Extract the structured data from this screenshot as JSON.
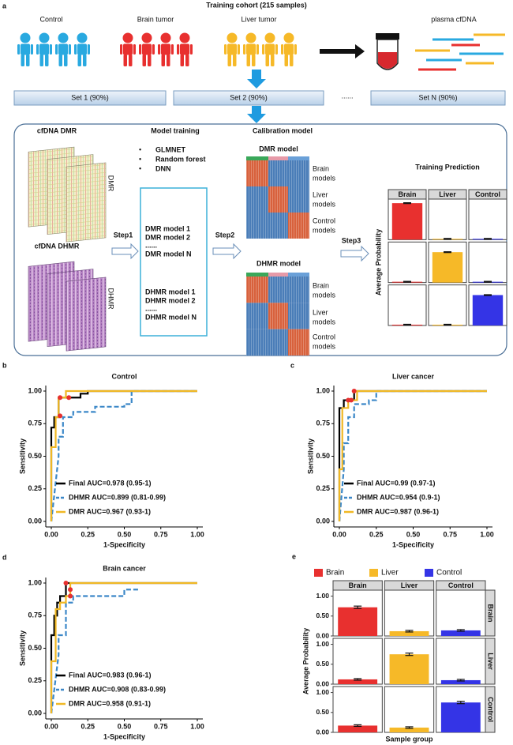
{
  "panel_a": {
    "label": "a",
    "title": "Training cohort (215 samples)",
    "groups": [
      "Control",
      "Brain tumor",
      "Liver tumor"
    ],
    "sample": "plasma cfDNA",
    "sets": [
      "Set 1 (90%)",
      "Set 2 (90%)",
      "......",
      "Set N (90%)"
    ],
    "features": {
      "dmr": "cfDNA DMR",
      "dmr_tag": "DMR",
      "dhmr": "cfDNA DHMR",
      "dhmr_tag": "DHMR"
    },
    "training": {
      "title": "Model training",
      "methods": [
        "GLMNET",
        "Random forest",
        "DNN"
      ],
      "dmr_models": [
        "DMR model 1",
        "DMR model 2",
        "......",
        "DMR model N"
      ],
      "dhmr_models": [
        "DHMR model 1",
        "DHMR model 2",
        "......",
        "DHMR model N"
      ]
    },
    "calibration": {
      "title": "Calibration model",
      "dmr_title": "DMR model",
      "dhmr_title": "DHMR model",
      "rows": [
        [
          "Brain",
          "models"
        ],
        [
          "Liver",
          "models"
        ],
        [
          "Control",
          "models"
        ]
      ]
    },
    "steps": [
      "Step1",
      "Step2",
      "Step3"
    ]
  },
  "chart_data": [
    {
      "type": "facet_bar",
      "title": "Training Prediction",
      "ylabel": "Average Probability",
      "categories": [
        "Brain",
        "Liver",
        "Control"
      ],
      "series": [
        {
          "name": "Brain",
          "color": "#e8302f"
        },
        {
          "name": "Liver",
          "color": "#f6b928"
        },
        {
          "name": "Control",
          "color": "#3434e6"
        }
      ],
      "ylim": [
        0,
        1
      ],
      "panels": [
        {
          "values": [
            0.9,
            0.02,
            0.02
          ],
          "errors": [
            0.01,
            0.01,
            0.01
          ]
        },
        {
          "values": [
            0.02,
            0.75,
            0.02
          ],
          "errors": [
            0.01,
            0.01,
            0.01
          ]
        },
        {
          "values": [
            0.02,
            0.02,
            0.75
          ],
          "errors": [
            0.01,
            0.01,
            0.01
          ]
        }
      ]
    },
    {
      "type": "roc",
      "panel": "b",
      "title": "Control",
      "xlabel": "1-Specificity",
      "ylabel": "Sensitivity",
      "legend": "bottom-left",
      "xlim": [
        0,
        1
      ],
      "ylim": [
        0,
        1
      ],
      "xticks": [
        {
          "value": 0,
          "label": "0.00"
        },
        {
          "value": 0.25,
          "label": "0.25"
        },
        {
          "value": 0.5,
          "label": "0.50"
        },
        {
          "value": 0.75,
          "label": "0.75"
        },
        {
          "value": 1,
          "label": "1.00"
        }
      ],
      "yticks": [
        {
          "value": 0,
          "label": "0.00"
        },
        {
          "value": 0.25,
          "label": "0.25"
        },
        {
          "value": 0.5,
          "label": "0.50"
        },
        {
          "value": 0.75,
          "label": "0.75"
        },
        {
          "value": 1,
          "label": "1.00"
        }
      ],
      "series": [
        {
          "name": "Final AUC=0.978 (0.95-1)",
          "color": "#000000",
          "dash": false,
          "x": [
            0,
            0,
            0.02,
            0.02,
            0.05,
            0.05,
            0.2,
            0.2,
            0.25,
            0.25,
            1
          ],
          "values": [
            0,
            0.72,
            0.72,
            0.8,
            0.8,
            0.95,
            0.95,
            0.98,
            0.98,
            1,
            1
          ]
        },
        {
          "name": "DHMR AUC=0.899 (0.81-0.99)",
          "color": "#3c88c8",
          "dash": true,
          "x": [
            0,
            0.05,
            0.05,
            0.08,
            0.08,
            0.15,
            0.15,
            0.3,
            0.3,
            0.5,
            0.5,
            0.55,
            0.55,
            1
          ],
          "values": [
            0,
            0.5,
            0.65,
            0.65,
            0.8,
            0.8,
            0.84,
            0.84,
            0.88,
            0.88,
            0.9,
            0.9,
            1,
            1
          ]
        },
        {
          "name": "DMR AUC=0.967 (0.93-1)",
          "color": "#f0b825",
          "dash": false,
          "x": [
            0,
            0,
            0.03,
            0.03,
            0.05,
            0.05,
            0.1,
            0.1,
            1
          ],
          "values": [
            0,
            0.57,
            0.57,
            0.8,
            0.8,
            0.95,
            0.95,
            1,
            1
          ]
        }
      ],
      "points": {
        "color": "#e8302f",
        "x": [
          0.06,
          0.12,
          0.06
        ],
        "values": [
          0.95,
          0.95,
          0.81
        ]
      }
    },
    {
      "type": "roc",
      "panel": "c",
      "title": "Liver cancer",
      "xlabel": "1-Specificity",
      "ylabel": "Sensitivity",
      "legend": "bottom-left",
      "xlim": [
        0,
        1
      ],
      "ylim": [
        0,
        1
      ],
      "xticks": [
        {
          "value": 0,
          "label": "0.00"
        },
        {
          "value": 0.25,
          "label": "0.25"
        },
        {
          "value": 0.5,
          "label": "0.50"
        },
        {
          "value": 0.75,
          "label": "0.75"
        },
        {
          "value": 1,
          "label": "1.00"
        }
      ],
      "yticks": [
        {
          "value": 0,
          "label": "0.00"
        },
        {
          "value": 0.25,
          "label": "0.25"
        },
        {
          "value": 0.5,
          "label": "0.50"
        },
        {
          "value": 0.75,
          "label": "0.75"
        },
        {
          "value": 1,
          "label": "1.00"
        }
      ],
      "series": [
        {
          "name": "Final AUC=0.99 (0.97-1)",
          "color": "#000000",
          "dash": false,
          "x": [
            0,
            0,
            0.03,
            0.03,
            0.1,
            0.1,
            1
          ],
          "values": [
            0,
            0.87,
            0.87,
            0.93,
            0.93,
            1,
            1
          ]
        },
        {
          "name": "DHMR AUC=0.954 (0.9-1)",
          "color": "#3c88c8",
          "dash": true,
          "x": [
            0,
            0.03,
            0.03,
            0.06,
            0.06,
            0.1,
            0.1,
            0.2,
            0.2,
            0.25,
            0.25,
            1
          ],
          "values": [
            0,
            0.4,
            0.6,
            0.6,
            0.8,
            0.8,
            0.9,
            0.9,
            0.93,
            0.93,
            1,
            1
          ]
        },
        {
          "name": "DMR AUC=0.987 (0.96-1)",
          "color": "#f0b825",
          "dash": false,
          "x": [
            0,
            0,
            0.02,
            0.02,
            0.06,
            0.06,
            0.12,
            0.12,
            1
          ],
          "values": [
            0,
            0.4,
            0.4,
            0.87,
            0.87,
            0.93,
            0.93,
            1,
            1
          ]
        }
      ],
      "points": {
        "color": "#e8302f",
        "x": [
          0.06,
          0.1,
          0.08
        ],
        "values": [
          0.93,
          1,
          0.93
        ]
      }
    },
    {
      "type": "roc",
      "panel": "d",
      "title": "Brain cancer",
      "xlabel": "1-Specificity",
      "ylabel": "Sensitivity",
      "legend": "bottom-left",
      "xlim": [
        0,
        1
      ],
      "ylim": [
        0,
        1
      ],
      "xticks": [
        {
          "value": 0,
          "label": "0.00"
        },
        {
          "value": 0.25,
          "label": "0.25"
        },
        {
          "value": 0.5,
          "label": "0.50"
        },
        {
          "value": 0.75,
          "label": "0.75"
        },
        {
          "value": 1,
          "label": "1.00"
        }
      ],
      "yticks": [
        {
          "value": 0,
          "label": "0.00"
        },
        {
          "value": 0.25,
          "label": "0.25"
        },
        {
          "value": 0.5,
          "label": "0.50"
        },
        {
          "value": 0.75,
          "label": "0.75"
        },
        {
          "value": 1,
          "label": "1.00"
        }
      ],
      "series": [
        {
          "name": "Final AUC=0.983 (0.96-1)",
          "color": "#000000",
          "dash": false,
          "x": [
            0,
            0,
            0.02,
            0.02,
            0.04,
            0.04,
            0.06,
            0.06,
            0.1,
            0.1,
            1
          ],
          "values": [
            0,
            0.6,
            0.6,
            0.75,
            0.75,
            0.85,
            0.85,
            0.9,
            0.9,
            1,
            1
          ]
        },
        {
          "name": "DHMR AUC=0.908 (0.83-0.99)",
          "color": "#3c88c8",
          "dash": true,
          "x": [
            0,
            0.05,
            0.05,
            0.1,
            0.1,
            0.15,
            0.15,
            0.5,
            0.5,
            0.6
          ],
          "values": [
            0,
            0.45,
            0.6,
            0.6,
            0.85,
            0.85,
            0.9,
            0.9,
            0.95,
            0.95
          ]
        },
        {
          "name": "DMR AUC=0.958 (0.91-1)",
          "color": "#f0b825",
          "dash": false,
          "x": [
            0,
            0,
            0.03,
            0.03,
            0.06,
            0.06,
            0.1,
            0.1,
            0.13,
            0.13,
            1
          ],
          "values": [
            0,
            0.4,
            0.4,
            0.8,
            0.8,
            0.85,
            0.85,
            0.9,
            0.9,
            1,
            1
          ]
        }
      ],
      "points": {
        "color": "#e8302f",
        "x": [
          0.1,
          0.13,
          0.13
        ],
        "values": [
          1,
          0.95,
          0.9
        ]
      }
    },
    {
      "type": "facet_bar",
      "panel": "e",
      "xlabel": "Sample group",
      "ylabel": "Average Probability",
      "legend": "top",
      "categories": [
        "Brain",
        "Liver",
        "Control"
      ],
      "series": [
        {
          "name": "Brain",
          "color": "#e8302f"
        },
        {
          "name": "Liver",
          "color": "#f6b928"
        },
        {
          "name": "Control",
          "color": "#3434e6"
        }
      ],
      "ylim": [
        0,
        1.15
      ],
      "yticks": [
        {
          "value": 0,
          "label": "0.00"
        },
        {
          "value": 0.5,
          "label": "0.50"
        },
        {
          "value": 1,
          "label": "1.00"
        }
      ],
      "panels": [
        {
          "row": "Brain",
          "values": [
            0.72,
            0.12,
            0.14
          ],
          "errors": [
            0.03,
            0.02,
            0.02
          ]
        },
        {
          "row": "Liver",
          "values": [
            0.12,
            0.75,
            0.1
          ],
          "errors": [
            0.02,
            0.03,
            0.02
          ]
        },
        {
          "row": "Control",
          "values": [
            0.17,
            0.12,
            0.75
          ],
          "errors": [
            0.02,
            0.02,
            0.03
          ]
        }
      ]
    }
  ]
}
